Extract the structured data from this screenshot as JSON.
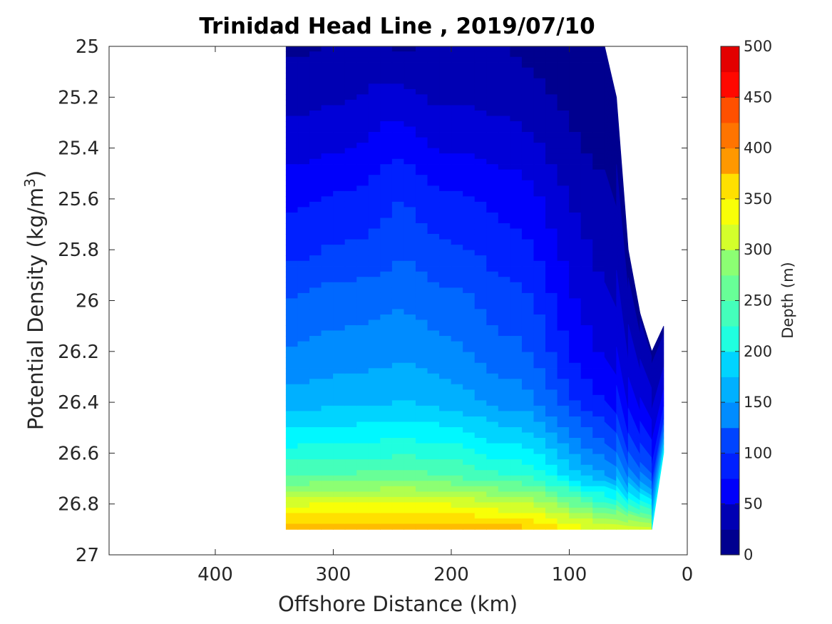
{
  "chart_data": {
    "type": "contourf",
    "title": "Trinidad Head Line , 2019/07/10",
    "xlabel": "Offshore Distance (km)",
    "ylabel_main": "Potential Density (kg/m",
    "ylabel_sup": "3",
    "ylabel_end": ")",
    "colorbar_label": "Depth (m)",
    "xlim": [
      490,
      0
    ],
    "x_reversed": true,
    "ylim": [
      25,
      27
    ],
    "y_reversed": true,
    "x_ticks": [
      400,
      300,
      200,
      100,
      0
    ],
    "x_tick_labels": [
      "400",
      "300",
      "200",
      "100",
      "0"
    ],
    "y_ticks": [
      25,
      25.2,
      25.4,
      25.6,
      25.8,
      26,
      26.2,
      26.4,
      26.6,
      26.8,
      27
    ],
    "y_tick_labels": [
      "25",
      "25.2",
      "25.4",
      "25.6",
      "25.8",
      "26",
      "26.2",
      "26.4",
      "26.6",
      "26.8",
      "27"
    ],
    "colorbar_ticks": [
      0,
      50,
      100,
      150,
      200,
      250,
      300,
      350,
      400,
      450,
      500
    ],
    "colorbar_tick_labels": [
      "0",
      "50",
      "100",
      "150",
      "200",
      "250",
      "300",
      "350",
      "400",
      "450",
      "500"
    ],
    "clim": [
      0,
      500
    ],
    "level_step": 25,
    "colormap": "jet",
    "level_colors": [
      "#00008f",
      "#0000b3",
      "#0000d7",
      "#0000fb",
      "#0020ff",
      "#0044ff",
      "#0068ff",
      "#008cff",
      "#00b0ff",
      "#00d4ff",
      "#00f8ff",
      "#20ffdf",
      "#44ffbb",
      "#68ff97",
      "#8cff73",
      "#b0ff4f",
      "#d4ff2b",
      "#f8ff07",
      "#ffe000",
      "#ffbc00",
      "#ff9800",
      "#ff7400",
      "#ff5000",
      "#ff2c00",
      "#ff0800",
      "#e30000"
    ],
    "stations_x": [
      340,
      330,
      320,
      310,
      300,
      290,
      280,
      270,
      260,
      250,
      240,
      230,
      220,
      210,
      200,
      190,
      180,
      170,
      160,
      150,
      140,
      130,
      120,
      110,
      100,
      90,
      80,
      70,
      60,
      50,
      40,
      30,
      20
    ],
    "surface_density": [
      25.0,
      25.0,
      25.0,
      25.0,
      25.0,
      25.0,
      25.0,
      25.0,
      25.0,
      25.0,
      25.0,
      25.0,
      25.0,
      25.0,
      25.0,
      25.0,
      25.0,
      25.0,
      25.0,
      25.0,
      25.0,
      25.0,
      25.0,
      25.0,
      25.0,
      25.0,
      25.0,
      25.0,
      25.2,
      25.8,
      26.05,
      26.2,
      26.1
    ],
    "bottom_density": [
      26.9,
      26.9,
      26.9,
      26.9,
      26.9,
      26.9,
      26.9,
      26.9,
      26.9,
      26.9,
      26.9,
      26.9,
      26.9,
      26.9,
      26.9,
      26.9,
      26.9,
      26.9,
      26.9,
      26.9,
      26.9,
      26.9,
      26.9,
      26.9,
      26.9,
      26.9,
      26.9,
      26.9,
      26.9,
      26.9,
      26.9,
      26.9,
      26.6
    ],
    "depth_profiles": {
      "density": [
        25.0,
        25.2,
        25.4,
        25.6,
        25.8,
        26.0,
        26.2,
        26.4,
        26.6,
        26.7,
        26.8,
        26.9
      ],
      "depth_by_station": [
        [
          20,
          40,
          65,
          95,
          115,
          150,
          175,
          210,
          285,
          330,
          420,
          490
        ],
        [
          20,
          40,
          65,
          95,
          118,
          152,
          178,
          212,
          285,
          330,
          420,
          490
        ],
        [
          22,
          42,
          68,
          98,
          120,
          155,
          180,
          214,
          287,
          332,
          422,
          490
        ],
        [
          25,
          45,
          70,
          100,
          125,
          160,
          182,
          215,
          288,
          333,
          423,
          490
        ],
        [
          25,
          46,
          72,
          102,
          128,
          162,
          185,
          217,
          289,
          334,
          424,
          490
        ],
        [
          28,
          48,
          74,
          104,
          128,
          162,
          185,
          216,
          289,
          334,
          424,
          490
        ],
        [
          30,
          50,
          76,
          106,
          130,
          163,
          187,
          218,
          290,
          335,
          425,
          490
        ],
        [
          32,
          54,
          80,
          108,
          132,
          165,
          188,
          220,
          291,
          336,
          426,
          490
        ],
        [
          30,
          58,
          88,
          115,
          135,
          168,
          190,
          222,
          292,
          337,
          428,
          490
        ],
        [
          22,
          60,
          95,
          122,
          140,
          170,
          192,
          224,
          293,
          338,
          428,
          490
        ],
        [
          20,
          56,
          92,
          124,
          145,
          172,
          192,
          225,
          294,
          338,
          428,
          490
        ],
        [
          26,
          52,
          85,
          118,
          140,
          168,
          190,
          223,
          293,
          337,
          427,
          490
        ],
        [
          32,
          48,
          78,
          110,
          134,
          163,
          187,
          220,
          291,
          335,
          426,
          490
        ],
        [
          36,
          45,
          74,
          106,
          130,
          160,
          183,
          217,
          289,
          333,
          424,
          490
        ],
        [
          40,
          45,
          72,
          104,
          128,
          158,
          180,
          214,
          287,
          331,
          422,
          490
        ],
        [
          40,
          45,
          72,
          104,
          128,
          156,
          176,
          210,
          283,
          328,
          419,
          490
        ],
        [
          38,
          44,
          70,
          100,
          124,
          150,
          170,
          204,
          277,
          322,
          414,
          490
        ],
        [
          34,
          42,
          68,
          96,
          118,
          144,
          164,
          198,
          270,
          315,
          408,
          490
        ],
        [
          30,
          40,
          66,
          92,
          112,
          138,
          158,
          192,
          264,
          310,
          404,
          488
        ],
        [
          25,
          38,
          64,
          90,
          110,
          136,
          156,
          190,
          262,
          308,
          402,
          486
        ],
        [
          20,
          36,
          62,
          88,
          108,
          134,
          154,
          188,
          260,
          306,
          400,
          484
        ],
        [
          16,
          32,
          56,
          80,
          100,
          126,
          146,
          180,
          252,
          298,
          392,
          478
        ],
        [
          14,
          28,
          48,
          70,
          88,
          112,
          132,
          166,
          238,
          284,
          380,
          470
        ],
        [
          12,
          24,
          40,
          60,
          76,
          96,
          116,
          150,
          222,
          268,
          366,
          460
        ],
        [
          10,
          20,
          32,
          50,
          64,
          82,
          100,
          134,
          204,
          250,
          350,
          450
        ],
        [
          8,
          16,
          26,
          42,
          56,
          70,
          88,
          120,
          190,
          236,
          336,
          440
        ],
        [
          6,
          12,
          22,
          36,
          48,
          62,
          78,
          108,
          176,
          222,
          322,
          432
        ],
        [
          4,
          10,
          18,
          30,
          42,
          54,
          70,
          98,
          164,
          210,
          310,
          425
        ],
        [
          0,
          0,
          12,
          24,
          36,
          48,
          62,
          90,
          154,
          198,
          300,
          420
        ],
        [
          0,
          0,
          0,
          0,
          0,
          38,
          54,
          80,
          142,
          186,
          290,
          414
        ],
        [
          0,
          0,
          0,
          0,
          0,
          0,
          44,
          70,
          130,
          176,
          282,
          408
        ],
        [
          0,
          0,
          0,
          0,
          0,
          0,
          30,
          60,
          120,
          165,
          276,
          405
        ],
        [
          0,
          0,
          0,
          0,
          0,
          0,
          20,
          55,
          115,
          160,
          270,
          400
        ]
      ]
    }
  }
}
